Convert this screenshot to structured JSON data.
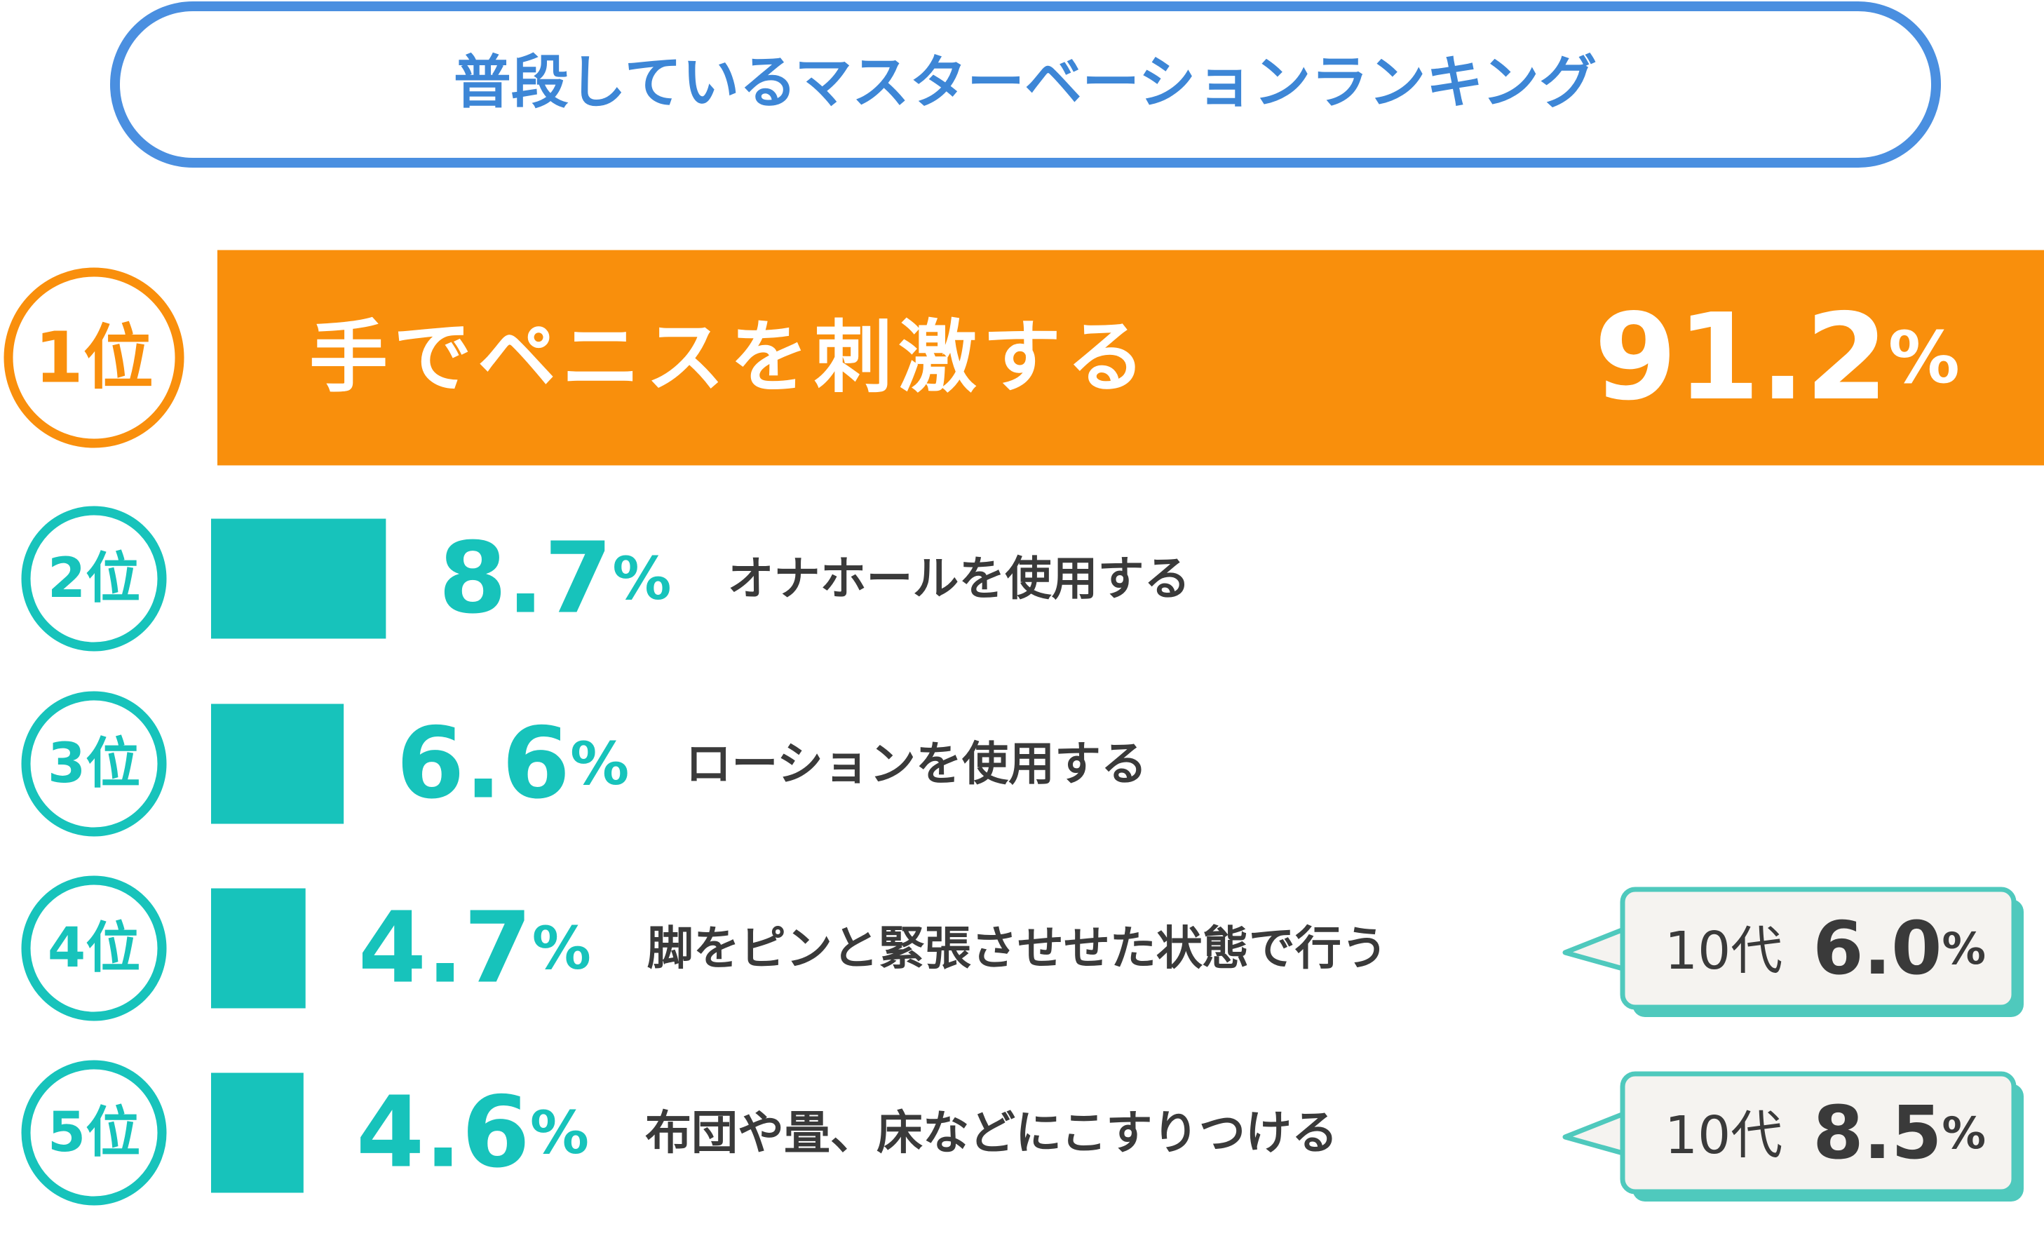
{
  "chart_data": {
    "type": "bar",
    "title": "普段しているマスターベーションランキング",
    "ranks": [
      "1位",
      "2位",
      "3位",
      "4位",
      "5位"
    ],
    "categories": [
      "手でペニスを刺激する",
      "オナホールを使用する",
      "ローションを使用する",
      "脚をピンと緊張させせた状態で行う",
      "布団や畳、床などにこすりつける"
    ],
    "values": [
      91.2,
      8.7,
      6.6,
      4.7,
      4.6
    ],
    "value_labels": [
      "91.2%",
      "8.7%",
      "6.6%",
      "4.7%",
      "4.6%"
    ],
    "colors": [
      "#f98f0c",
      "#17c3bb",
      "#17c3bb",
      "#17c3bb",
      "#17c3bb"
    ],
    "callouts": [
      null,
      null,
      null,
      {
        "label": "10代",
        "value": 6.0,
        "value_label": "6.0%"
      },
      {
        "label": "10代",
        "value": 8.5,
        "value_label": "8.5%"
      }
    ]
  }
}
